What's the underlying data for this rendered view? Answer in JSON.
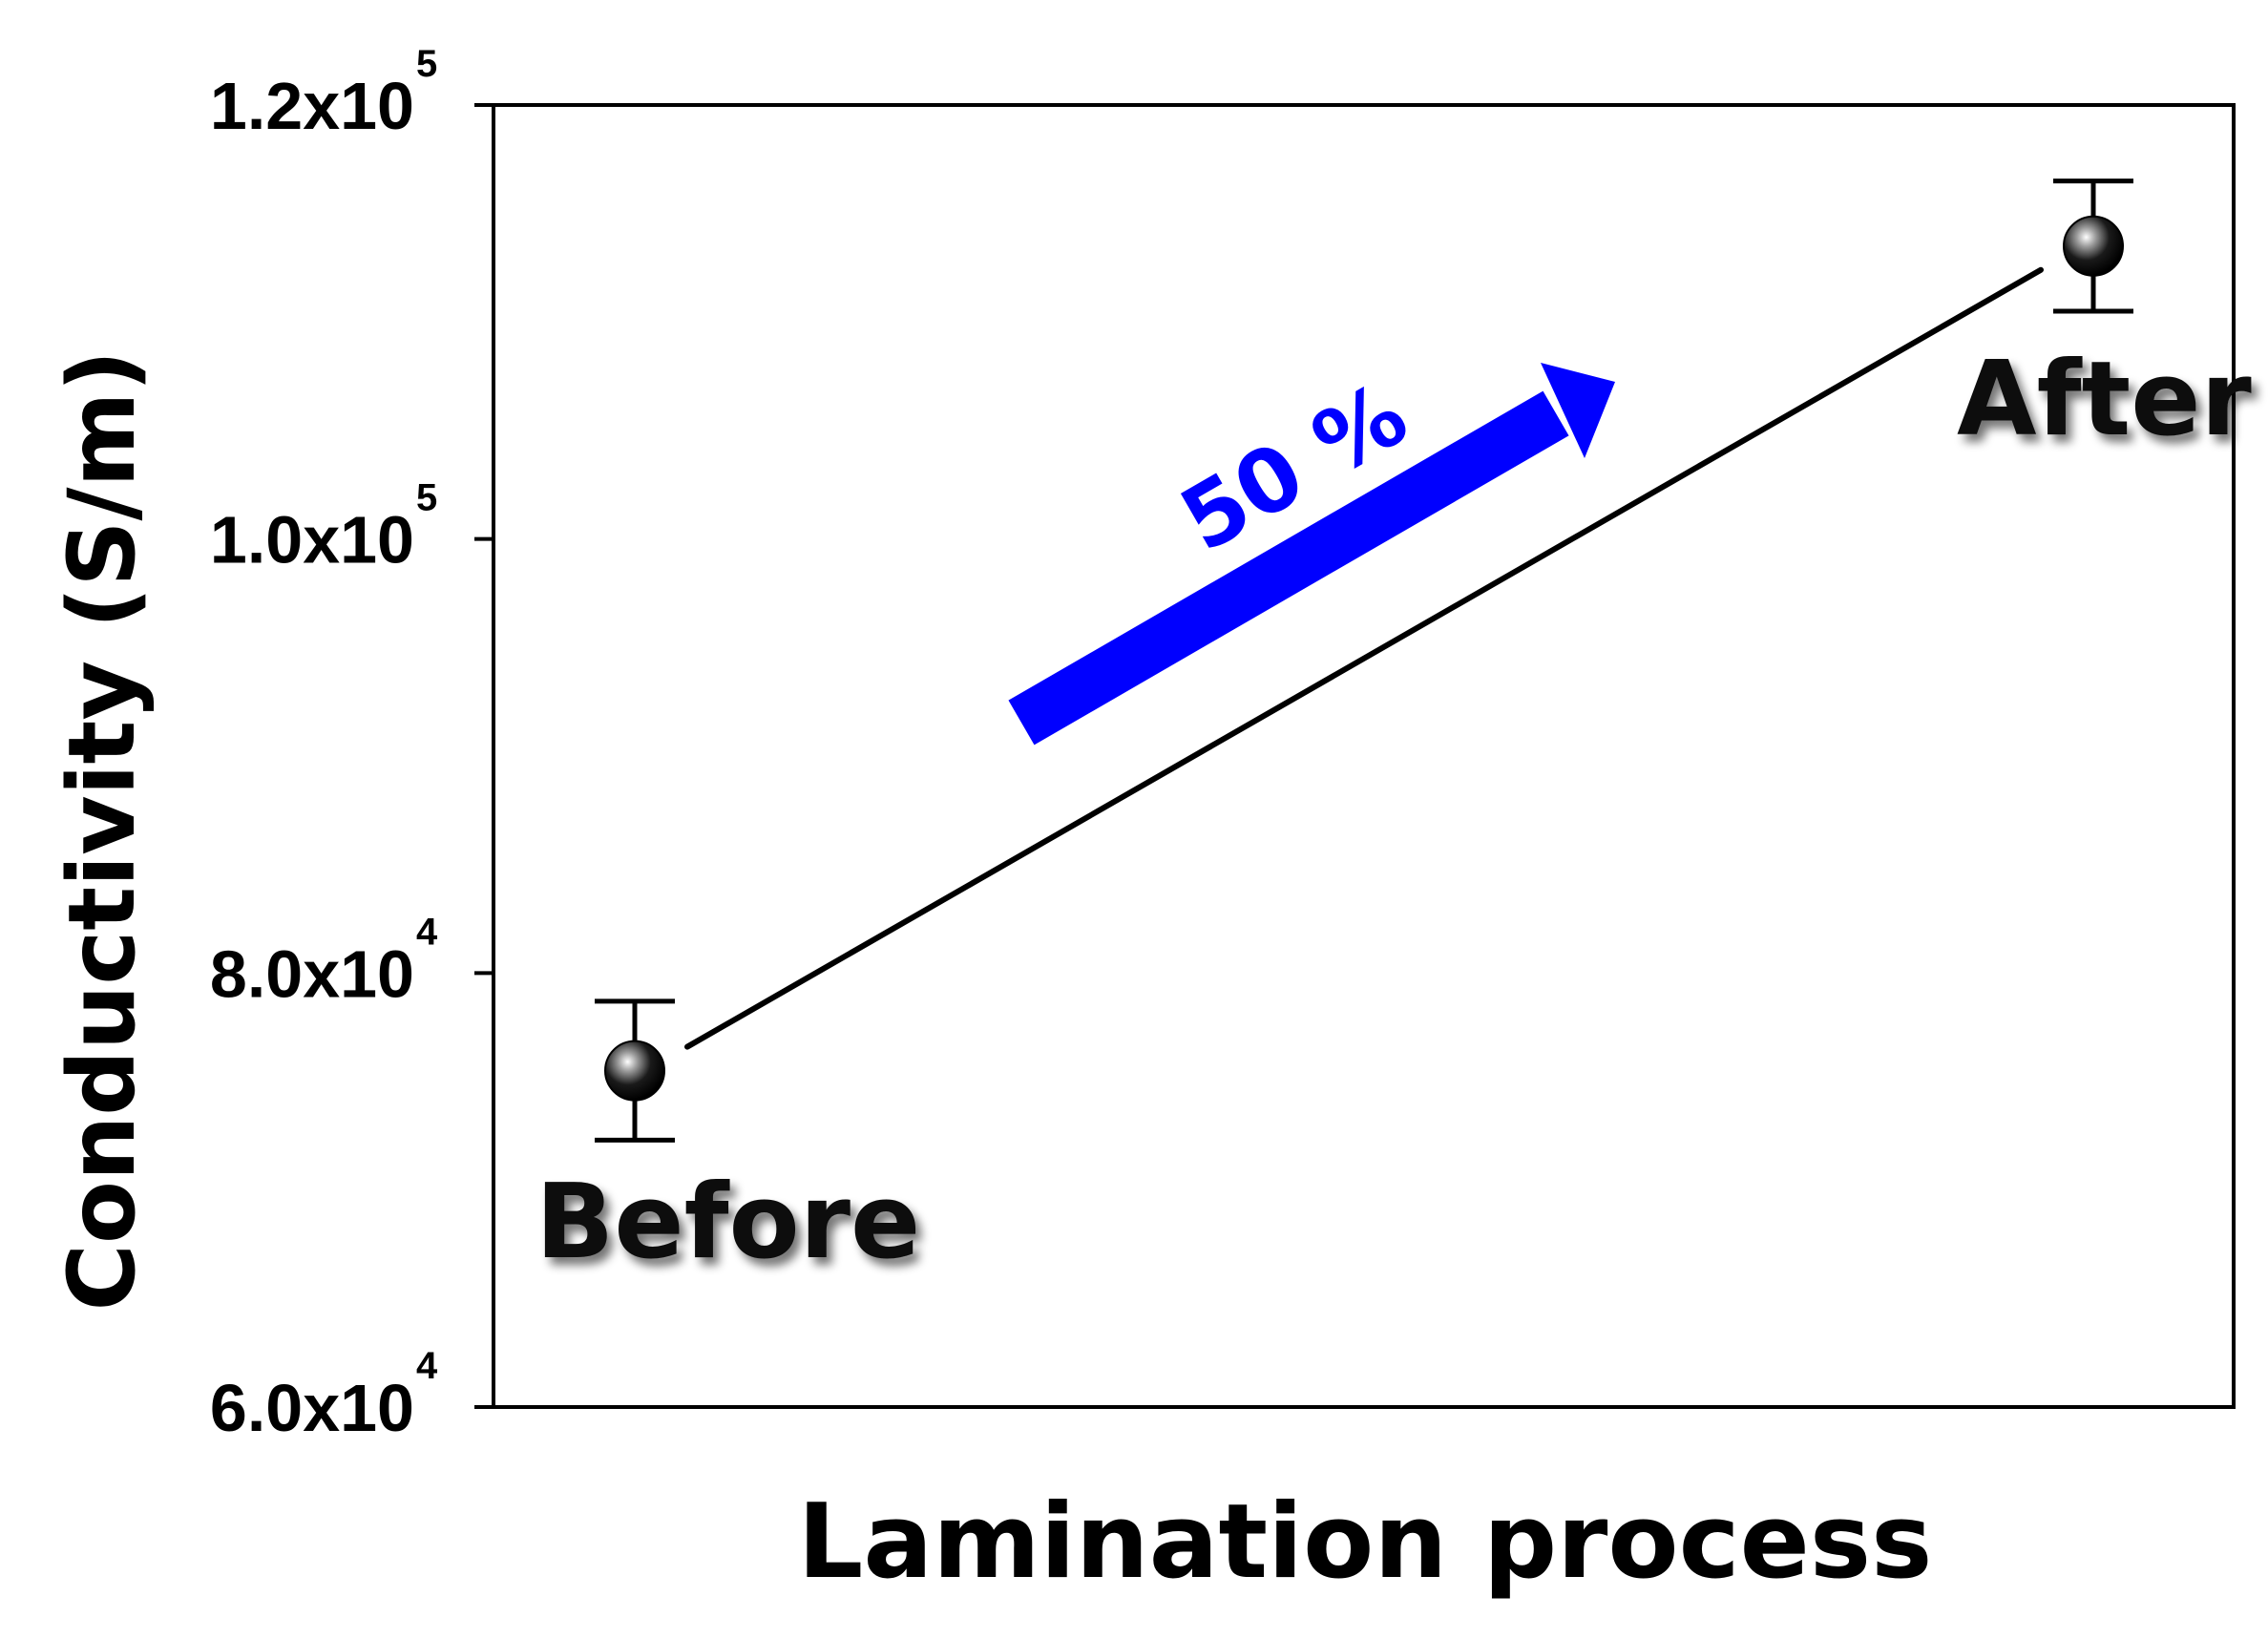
{
  "chart_data": {
    "type": "scatter",
    "title": "",
    "xlabel": "Lamination process",
    "ylabel": "Conductivity (S/m)",
    "ylim": [
      60000,
      120000
    ],
    "y_ticks": [
      {
        "value": 120000,
        "mantissa": "1.2x10",
        "exponent": "5"
      },
      {
        "value": 100000,
        "mantissa": "1.0x10",
        "exponent": "5"
      },
      {
        "value": 80000,
        "mantissa": "8.0x10",
        "exponent": "4"
      },
      {
        "value": 60000,
        "mantissa": "6.0x10",
        "exponent": "4"
      }
    ],
    "categories": [
      "Before",
      "After"
    ],
    "series": [
      {
        "name": "Conductivity",
        "values": [
          75500,
          113500
        ],
        "error": [
          3200,
          3000
        ]
      }
    ],
    "annotation": {
      "text": "50 %",
      "color": "#0000ff"
    },
    "grid": false,
    "legend": "none"
  }
}
